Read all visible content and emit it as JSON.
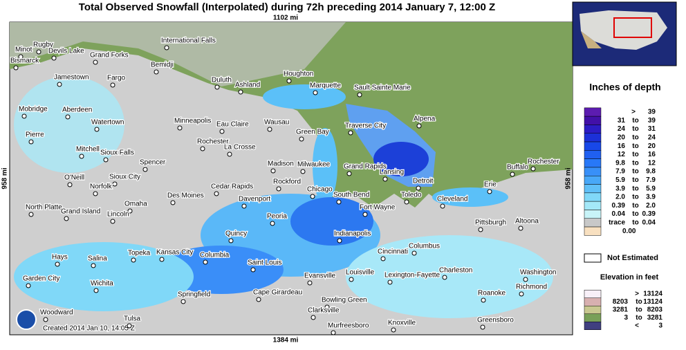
{
  "header": {
    "title": "Total Observed Snowfall (Interpolated) during 72h preceding 2014 January 7, 12:00 Z"
  },
  "map": {
    "top_scale": "1102 mi",
    "bottom_scale": "1384 mi",
    "left_scale": "958 mi",
    "right_scale": "958 mi",
    "credit": "Created 2014 Jan 10, 14:05 Z",
    "cities": [
      "Minot",
      "Rugby",
      "Devils Lake",
      "Grand Forks",
      "International Falls",
      "Bemidji",
      "Bismarck",
      "Jamestown",
      "Fargo",
      "Duluth",
      "Ashland",
      "Houghton",
      "Marquette",
      "Sault Sainte Marie",
      "Mobridge",
      "Aberdeen",
      "Watertown",
      "Minneapolis",
      "Eau Claire",
      "Wausau",
      "Green Bay",
      "Traverse City",
      "Alpena",
      "Pierre",
      "Rochester",
      "La Crosse",
      "Mitchell",
      "Sioux Falls",
      "Spencer",
      "Madison",
      "Milwaukee",
      "Grand Rapids",
      "Lansing",
      "Buffalo",
      "Rochester",
      "O'Neill",
      "Sioux City",
      "Norfolk",
      "Des Moines",
      "Cedar Rapids",
      "Rockford",
      "Chicago",
      "South Bend",
      "Detroit",
      "Toledo",
      "Erie",
      "Davenport",
      "North Platte",
      "Grand Island",
      "Omaha",
      "Lincoln",
      "Fort Wayne",
      "Cleveland",
      "Peoria",
      "Pittsburgh",
      "Altoona",
      "Quincy",
      "Indianapolis",
      "Columbus",
      "Cincinnati",
      "Topeka",
      "Kansas City",
      "Columbia",
      "Hays",
      "Salina",
      "Saint Louis",
      "Charleston",
      "Washington",
      "Garden City",
      "Wichita",
      "Louisville",
      "Evansville",
      "Lexington-Fayette",
      "Richmond",
      "Springfield",
      "Cape Girardeau",
      "Roanoke",
      "Bowling Green",
      "Clarksville",
      "Woodward",
      "Tulsa",
      "Murfreesboro",
      "Knoxville",
      "Greensboro"
    ]
  },
  "legend": {
    "title": "Inches of depth",
    "rows": [
      {
        "color": "#5c1cb0",
        "parts": [
          ">",
          "39"
        ]
      },
      {
        "color": "#4210a8",
        "parts": [
          "31",
          "to",
          "39"
        ]
      },
      {
        "color": "#2c1cc4",
        "parts": [
          "24",
          "to",
          "31"
        ]
      },
      {
        "color": "#1c30d8",
        "parts": [
          "20",
          "to",
          "24"
        ]
      },
      {
        "color": "#1848e8",
        "parts": [
          "16",
          "to",
          "20"
        ]
      },
      {
        "color": "#2060f0",
        "parts": [
          "12",
          "to",
          "16"
        ]
      },
      {
        "color": "#2878f8",
        "parts": [
          "9.8",
          "to",
          "12"
        ]
      },
      {
        "color": "#3890f8",
        "parts": [
          "7.9",
          "to",
          "9.8"
        ]
      },
      {
        "color": "#48a8f8",
        "parts": [
          "5.9",
          "to",
          "7.9"
        ]
      },
      {
        "color": "#60c0f8",
        "parts": [
          "3.9",
          "to",
          "5.9"
        ]
      },
      {
        "color": "#80d8f8",
        "parts": [
          "2.0",
          "to",
          "3.9"
        ]
      },
      {
        "color": "#a4e8f8",
        "parts": [
          "0.39",
          "to",
          "2.0"
        ]
      },
      {
        "color": "#c8f4f8",
        "parts": [
          "0.04",
          "to",
          "0.39"
        ]
      },
      {
        "color": "#c8c8c8",
        "parts": [
          "trace",
          "to",
          "0.04"
        ]
      },
      {
        "color": "#f8e0c0",
        "parts": [
          "0.00"
        ]
      }
    ],
    "not_estimated": "Not Estimated",
    "elevation_title": "Elevation in feet",
    "elevation_rows": [
      {
        "color": "#f8f0f8",
        "parts": [
          ">",
          "13124"
        ]
      },
      {
        "color": "#d8b0b0",
        "parts": [
          "8203",
          "to",
          "13124"
        ]
      },
      {
        "color": "#c8c890",
        "parts": [
          "3281",
          "to",
          "8203"
        ]
      },
      {
        "color": "#78a058",
        "parts": [
          "3",
          "to",
          "3281"
        ]
      },
      {
        "color": "#404080",
        "parts": [
          "<",
          "3"
        ]
      }
    ]
  }
}
